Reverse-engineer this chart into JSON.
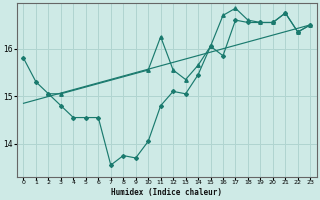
{
  "title": "",
  "xlabel": "Humidex (Indice chaleur)",
  "bg_color": "#ceeae6",
  "grid_color": "#b0d4d0",
  "line_color": "#1a7a6e",
  "xlim": [
    -0.5,
    23.5
  ],
  "ylim": [
    13.3,
    16.95
  ],
  "yticks": [
    14,
    15,
    16
  ],
  "xticks": [
    0,
    1,
    2,
    3,
    4,
    5,
    6,
    7,
    8,
    9,
    10,
    11,
    12,
    13,
    14,
    15,
    16,
    17,
    18,
    19,
    20,
    21,
    22,
    23
  ],
  "series1_x": [
    0,
    1,
    2,
    3,
    4,
    5,
    6,
    7,
    8,
    9,
    10,
    11,
    12,
    13,
    14,
    15,
    16,
    17,
    18,
    19,
    20,
    21,
    22,
    23
  ],
  "series1_y": [
    15.8,
    15.3,
    15.05,
    14.8,
    14.55,
    14.55,
    14.55,
    13.55,
    13.75,
    13.7,
    14.05,
    14.8,
    15.1,
    15.05,
    15.45,
    16.05,
    15.85,
    16.6,
    16.55,
    16.55,
    16.55,
    16.75,
    16.35,
    16.5
  ],
  "series2_x": [
    2,
    3,
    10,
    11,
    12,
    13,
    14,
    15,
    16,
    17,
    18,
    19,
    20,
    21,
    22,
    23
  ],
  "series2_y": [
    15.05,
    15.05,
    15.55,
    16.25,
    15.55,
    15.35,
    15.65,
    16.05,
    16.7,
    16.85,
    16.6,
    16.55,
    16.55,
    16.75,
    16.35,
    16.5
  ],
  "trend_x": [
    0,
    23
  ],
  "trend_y": [
    14.85,
    16.5
  ]
}
